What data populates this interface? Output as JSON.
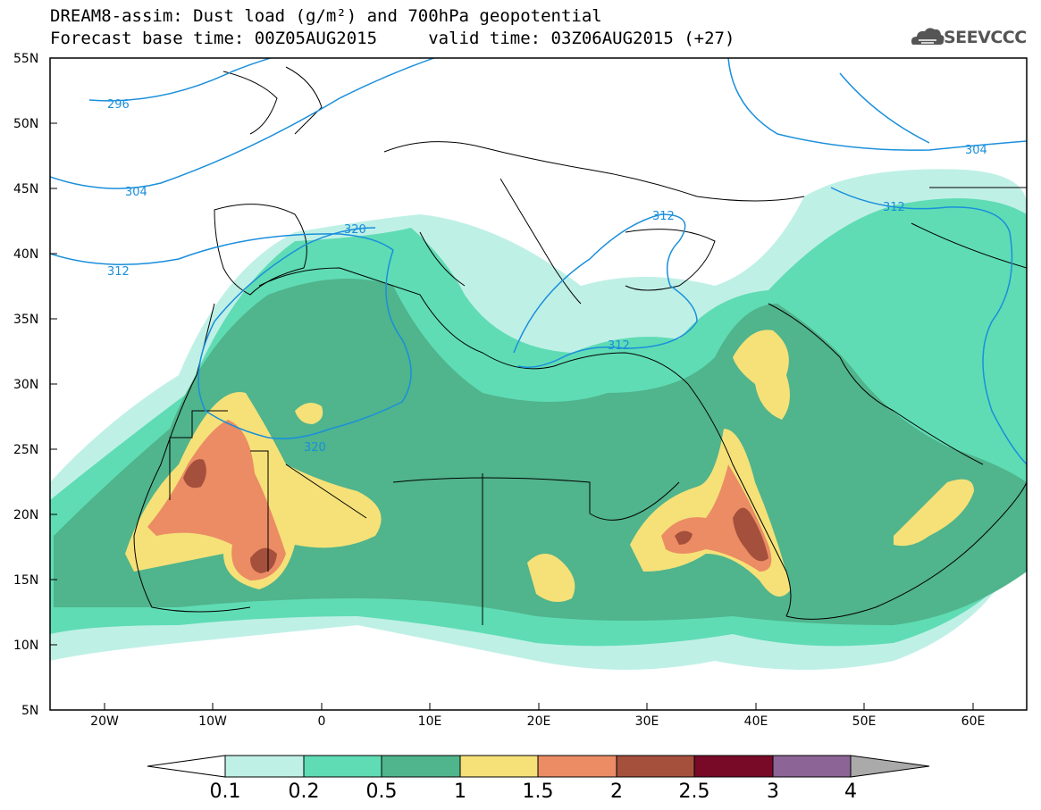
{
  "title": {
    "line1": "DREAM8-assim: Dust load (g/m²) and 700hPa geopotential",
    "line2": "Forecast base time: 00Z05AUG2015     valid time: 03Z06AUG2015 (+27)"
  },
  "logo": {
    "text": "SEEVCCC",
    "icon": "cloud-icon"
  },
  "axes": {
    "lat_labels": [
      "55N",
      "50N",
      "45N",
      "40N",
      "35N",
      "30N",
      "25N",
      "20N",
      "15N",
      "10N",
      "5N"
    ],
    "lon_labels": [
      "20W",
      "10W",
      "0",
      "10E",
      "20E",
      "30E",
      "40E",
      "50E",
      "60E"
    ]
  },
  "contours": {
    "color": "#1a8fdb",
    "labels": [
      "296",
      "304",
      "304",
      "312",
      "312",
      "312",
      "312",
      "320",
      "320"
    ]
  },
  "colorbar": {
    "levels": [
      "0.1",
      "0.2",
      "0.5",
      "1",
      "1.5",
      "2",
      "2.5",
      "3",
      "4"
    ],
    "colors": [
      "#bff0e6",
      "#5fdcb4",
      "#50b48c",
      "#f5e178",
      "#eb8c64",
      "#a5503c",
      "#780a28",
      "#8c6496",
      "#aaaaaa"
    ]
  },
  "legend_colors": {
    "land_bg": "#ffffff",
    "borders": "#000000"
  }
}
